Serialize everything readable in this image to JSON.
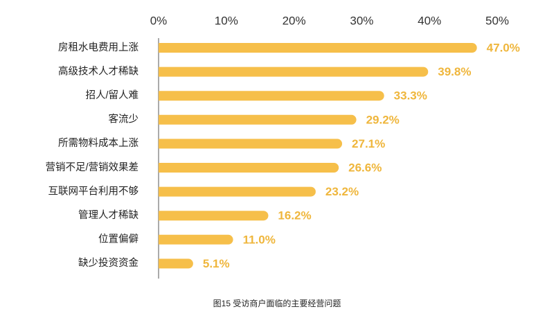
{
  "chart_data": {
    "type": "bar",
    "orientation": "horizontal",
    "title": "图15  受访商户面临的主要经营问题",
    "categories": [
      "房租水电费用上涨",
      "高级技术人才稀缺",
      "招人/留人难",
      "客流少",
      "所需物料成本上涨",
      "营销不足/营销效果差",
      "互联网平台利用不够",
      "管理人才稀缺",
      "位置偏僻",
      "缺少投资资金"
    ],
    "values": [
      47.0,
      39.8,
      33.3,
      29.2,
      27.1,
      26.6,
      23.2,
      16.2,
      11.0,
      5.1
    ],
    "value_labels": [
      "47.0%",
      "39.8%",
      "33.3%",
      "29.2%",
      "27.1%",
      "26.6%",
      "23.2%",
      "16.2%",
      "11.0%",
      "5.1%"
    ],
    "color": "#f6bf4a",
    "label_color": "#efb63c",
    "xlim": [
      0,
      50
    ],
    "xticks": [
      {
        "value": 0,
        "label": "0%"
      },
      {
        "value": 10,
        "label": "10%"
      },
      {
        "value": 20,
        "label": "20%"
      },
      {
        "value": 30,
        "label": "30%"
      },
      {
        "value": 40,
        "label": "40%"
      },
      {
        "value": 50,
        "label": "50%"
      }
    ],
    "grid": false
  }
}
